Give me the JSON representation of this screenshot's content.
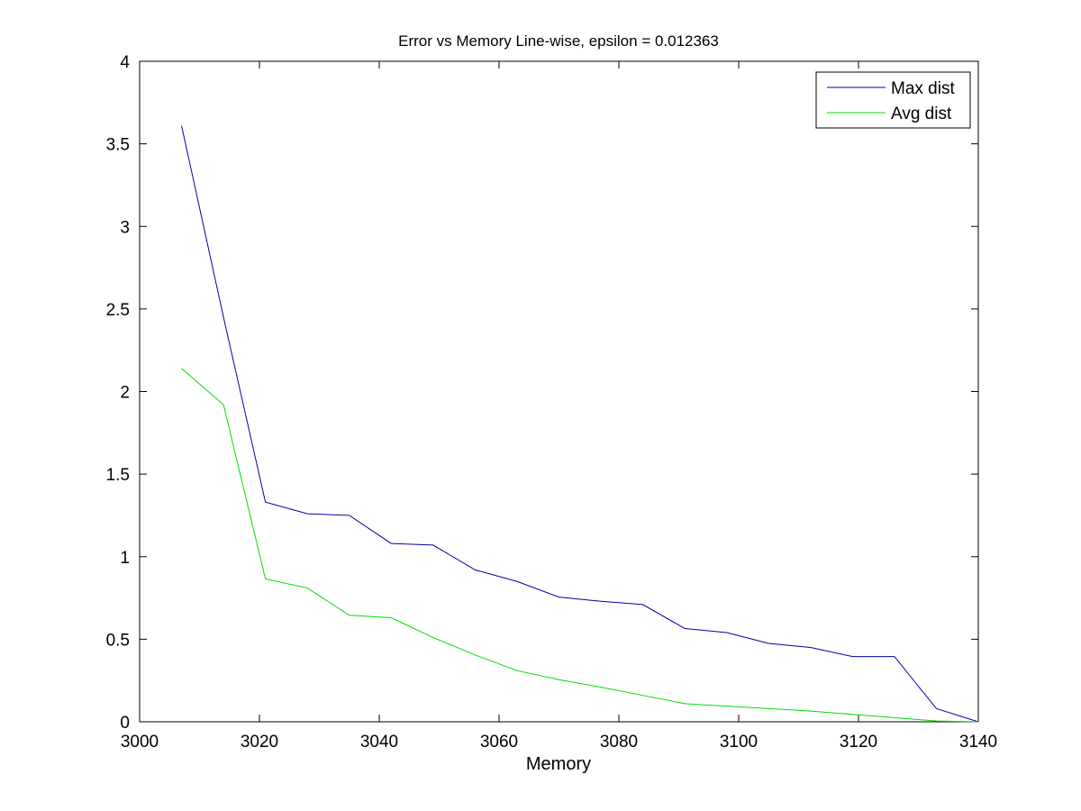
{
  "chart_data": {
    "type": "line",
    "title": "Error vs Memory Line-wise, epsilon = 0.012363",
    "xlabel": "Memory",
    "ylabel": "",
    "xlim": [
      3000,
      3140
    ],
    "ylim": [
      0,
      4
    ],
    "xticks": [
      3000,
      3020,
      3040,
      3060,
      3080,
      3100,
      3120,
      3140
    ],
    "yticks": [
      0,
      0.5,
      1,
      1.5,
      2,
      2.5,
      3,
      3.5,
      4
    ],
    "grid": false,
    "legend_position": "top-right",
    "x": [
      3007,
      3014,
      3021,
      3028,
      3035,
      3042,
      3049,
      3056,
      3063,
      3070,
      3077,
      3084,
      3091,
      3098,
      3105,
      3112,
      3119,
      3126,
      3133,
      3140
    ],
    "series": [
      {
        "name": "Max dist",
        "color": "#0000aa",
        "values": [
          3.61,
          2.45,
          1.33,
          1.26,
          1.25,
          1.08,
          1.07,
          0.92,
          0.85,
          0.755,
          0.73,
          0.71,
          0.565,
          0.54,
          0.475,
          0.45,
          0.395,
          0.395,
          0.08,
          0.0
        ]
      },
      {
        "name": "Avg dist",
        "color": "#00dd00",
        "values": [
          2.14,
          1.92,
          0.865,
          0.81,
          0.645,
          0.63,
          0.51,
          0.405,
          0.31,
          0.255,
          0.21,
          0.16,
          0.11,
          0.095,
          0.08,
          0.065,
          0.045,
          0.025,
          0.005,
          0.0
        ]
      }
    ]
  }
}
